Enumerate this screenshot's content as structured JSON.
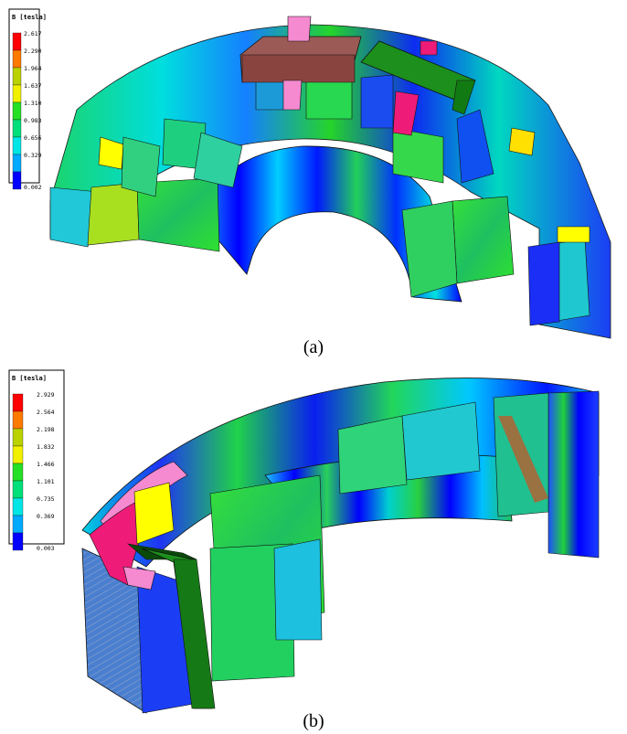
{
  "figures": [
    {
      "caption": "(a)",
      "legend": {
        "title": "B [tesla]",
        "ticks": [
          "2.617",
          "2.290",
          "1.964",
          "1.637",
          "1.310",
          "0.983",
          "0.656",
          "0.329",
          "0.002"
        ]
      }
    },
    {
      "caption": "(b)",
      "legend": {
        "title": "B [tesla]",
        "ticks": [
          "2.929",
          "2.564",
          "2.198",
          "1.832",
          "1.466",
          "1.101",
          "0.735",
          "0.369",
          "0.003"
        ]
      }
    }
  ],
  "colors": {
    "scale": [
      "#ff0000",
      "#ff7a00",
      "#b9d200",
      "#f0f000",
      "#25e025",
      "#00e07a",
      "#00e6e6",
      "#00aaff",
      "#0000ff"
    ],
    "brown_coil": "#9b5a55",
    "dark_green_coil": "#1c8f1c",
    "pink_coil": "#f58ad0",
    "magenta_coil": "#ee1c78",
    "yellow_tooth": "#ffff00"
  }
}
